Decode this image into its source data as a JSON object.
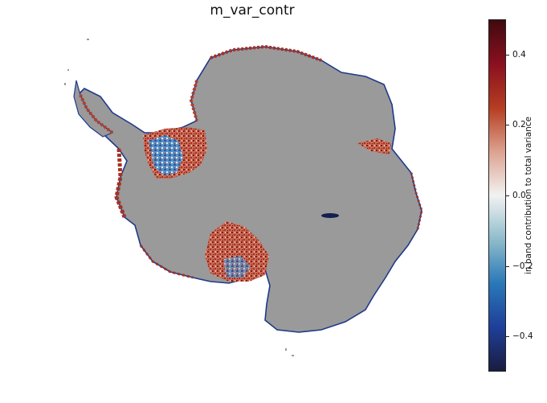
{
  "title": "m_var_contr",
  "colorbar": {
    "label": "in band contribution to total variance",
    "ticks": [
      {
        "value": 0.4,
        "label": "0.4"
      },
      {
        "value": 0.2,
        "label": "0.2"
      },
      {
        "value": 0.0,
        "label": "0.0"
      },
      {
        "value": -0.2,
        "label": "−0.2"
      },
      {
        "value": -0.4,
        "label": "−0.4"
      }
    ],
    "range": [
      -0.5,
      0.5
    ],
    "colormap": [
      "#1a1c3e",
      "#1f3f9a",
      "#2a78b8",
      "#8fbccb",
      "#f2f2f2",
      "#dca28f",
      "#b53d21",
      "#8a1020",
      "#3f0a0f"
    ]
  },
  "map": {
    "region": "Antarctica",
    "land_color": "#9a9a9a",
    "positive_color": "#a52a1e",
    "negative_color": "#1f5fb0"
  }
}
